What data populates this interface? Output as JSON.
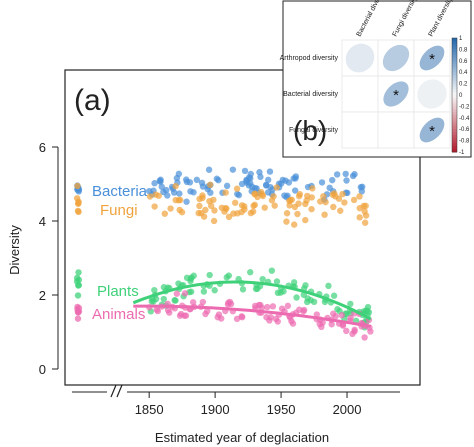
{
  "chart_data": [
    {
      "panel": "(a)",
      "type": "scatter",
      "xlabel": "Estimated year of deglaciation",
      "ylabel": "Diversity",
      "xticks": [
        "1850",
        "1900",
        "1950",
        "2000"
      ],
      "xlim": [
        1815,
        2025
      ],
      "yticks": [
        "0",
        "2",
        "4",
        "6"
      ],
      "ylim": [
        -0.25,
        6.6
      ],
      "series": [
        {
          "name": "Bacteria",
          "color": "#4a90d9",
          "center": 4.95,
          "spread": 0.32,
          "trend": [
            5.0,
            5.0
          ]
        },
        {
          "name": "Fungi",
          "color": "#f0a33c",
          "center": 4.45,
          "spread": 0.42,
          "trend": [
            4.5,
            4.5
          ]
        },
        {
          "name": "Plants",
          "color": "#3fd17a",
          "center": 2.3,
          "spread": 0.3,
          "trend": [
            1.95,
            2.35,
            1.35
          ]
        },
        {
          "name": "Animals",
          "color": "#ec6bb0",
          "center": 1.6,
          "spread": 0.28,
          "trend": [
            1.7,
            1.6,
            1.15
          ]
        }
      ],
      "trend_x": [
        1850,
        1920,
        2018
      ],
      "legend_placement": "inside-left"
    },
    {
      "panel": "(b)",
      "type": "heatmap",
      "rows": [
        "Arthropod diversity",
        "Bacterial diversity",
        "Fungal diversity"
      ],
      "cols": [
        "Bacterial diversity",
        "Fungi diversity",
        "Plant diversity"
      ],
      "cells": [
        [
          0.1,
          0.3,
          0.45
        ],
        [
          null,
          0.4,
          0.05
        ],
        [
          null,
          null,
          0.45
        ]
      ],
      "significant": [
        [
          false,
          false,
          true
        ],
        [
          false,
          true,
          false
        ],
        [
          false,
          false,
          true
        ]
      ],
      "significance_marker": "*",
      "colorbar_ticks": [
        "1",
        "0.8",
        "0.6",
        "0.4",
        "0.2",
        "0",
        "-0.2",
        "-0.4",
        "-0.6",
        "-0.8",
        "-1"
      ],
      "colorbar_range": [
        -1,
        1
      ]
    }
  ]
}
